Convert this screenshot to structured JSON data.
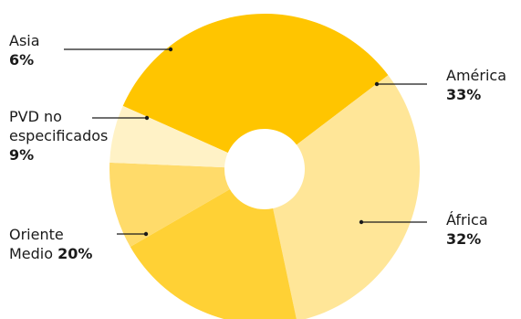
{
  "chart_data": {
    "type": "pie",
    "donut": true,
    "title": "",
    "slices": [
      {
        "label": "América",
        "value": 33,
        "display": "33%",
        "color": "#FFC500"
      },
      {
        "label": "África",
        "value": 32,
        "display": "32%",
        "color": "#FFE698"
      },
      {
        "label": "Oriente Medio",
        "value": 20,
        "display": "20%",
        "color": "#FFD135"
      },
      {
        "label": "PVD no especificados",
        "value": 9,
        "display": "9%",
        "color": "#FFDB6A"
      },
      {
        "label": "Asia",
        "value": 6,
        "display": "6%",
        "color": "#FFF2C6"
      }
    ],
    "label_text": {
      "america": "América",
      "africa": "África",
      "oriente_1": "Oriente",
      "oriente_2": "Medio",
      "pvd_1": "PVD no",
      "pvd_2": "especificados",
      "asia": "Asia"
    },
    "leader_color": "#1a1a1a"
  }
}
